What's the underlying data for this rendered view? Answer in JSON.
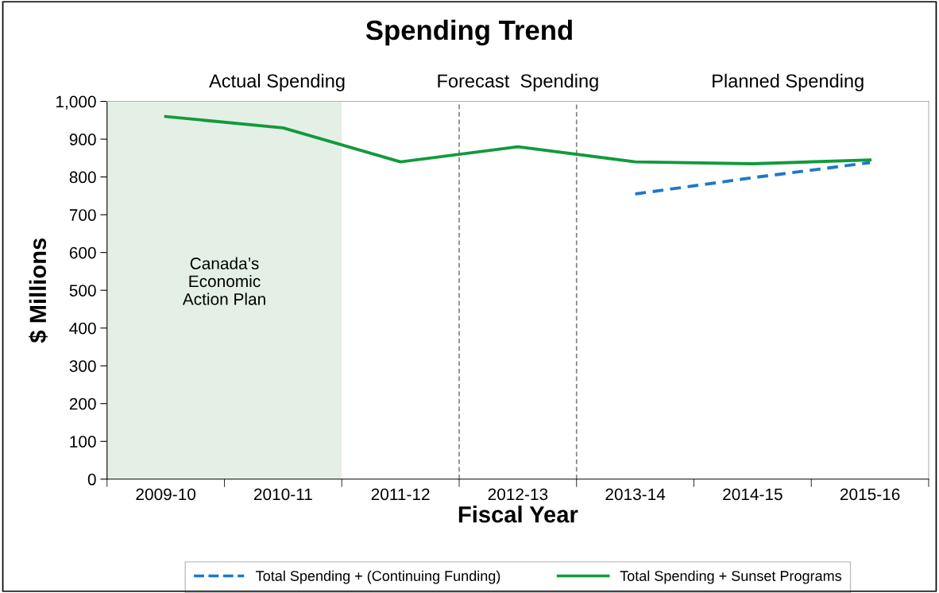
{
  "chart_data": {
    "type": "line",
    "title": "Spending Trend",
    "xlabel": "Fiscal Year",
    "ylabel": "$ Millions",
    "categories": [
      "2009-10",
      "2010-11",
      "2011-12",
      "2012-13",
      "2013-14",
      "2014-15",
      "2015-16"
    ],
    "series": [
      {
        "name": "Total Spending + (Continuing Funding)",
        "color": "#1f78c8",
        "line_style": "dashed",
        "values": [
          null,
          null,
          null,
          null,
          755,
          798,
          838
        ]
      },
      {
        "name": "Total Spending + Sunset Programs",
        "color": "#129a3c",
        "line_style": "solid",
        "values": [
          960,
          930,
          840,
          880,
          840,
          835,
          845
        ]
      }
    ],
    "ylim": [
      0,
      1000
    ],
    "yticks": [
      0,
      100,
      200,
      300,
      400,
      500,
      600,
      700,
      800,
      900,
      {
        "value": 1000,
        "label": "1,000"
      }
    ],
    "bands": [
      {
        "axis": "x",
        "from": "2009-10",
        "to": "2010-11",
        "label": "Canada’s\nEconomic\nAction Plan",
        "color": "#e4f0e6"
      }
    ],
    "annotations": [
      "Actual Spending",
      "Forecast  Spending",
      "Planned Spending"
    ],
    "grid": false,
    "legend": "bottom",
    "marker": "none"
  }
}
